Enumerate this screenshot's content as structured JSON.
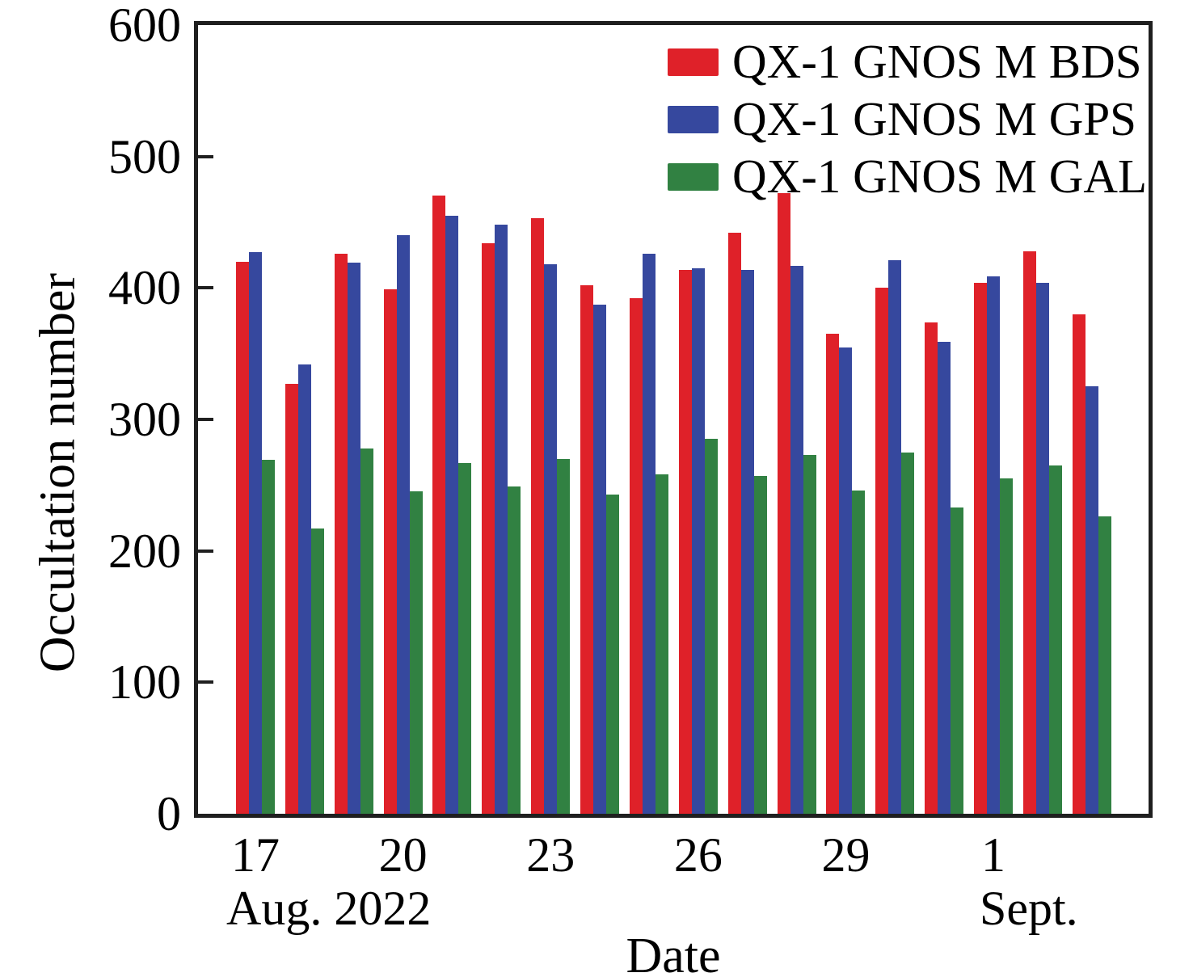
{
  "figure": {
    "ylabel": "Occultation number",
    "xlabel": "Date",
    "period_left": "Aug. 2022",
    "period_right": "Sept."
  },
  "chart_data": {
    "type": "bar",
    "title": "",
    "xlabel": "Date",
    "ylabel": "Occultation number",
    "ylim": [
      0,
      600
    ],
    "yticks": [
      0,
      100,
      200,
      300,
      400,
      500,
      600
    ],
    "grid": false,
    "legend_position": "upper right",
    "categories": [
      "Aug 17",
      "Aug 18",
      "Aug 19",
      "Aug 20",
      "Aug 21",
      "Aug 22",
      "Aug 23",
      "Aug 24",
      "Aug 25",
      "Aug 26",
      "Aug 27",
      "Aug 28",
      "Aug 29",
      "Aug 30",
      "Aug 31",
      "Sept 1",
      "Sept 2",
      "Sept 3"
    ],
    "xticks": [
      {
        "label": "17",
        "index": 0
      },
      {
        "label": "20",
        "index": 3
      },
      {
        "label": "23",
        "index": 6
      },
      {
        "label": "26",
        "index": 9
      },
      {
        "label": "29",
        "index": 12
      },
      {
        "label": "1",
        "index": 15
      }
    ],
    "period_labels": {
      "left": "Aug. 2022",
      "right": "Sept."
    },
    "series": [
      {
        "name": "QX-1 GNOS M BDS",
        "color": "#df2129",
        "values": [
          420,
          327,
          426,
          399,
          470,
          434,
          453,
          402,
          392,
          414,
          442,
          472,
          365,
          400,
          374,
          404,
          428,
          380
        ]
      },
      {
        "name": "QX-1 GNOS M GPS",
        "color": "#36489e",
        "values": [
          427,
          342,
          419,
          440,
          455,
          448,
          418,
          387,
          426,
          415,
          414,
          417,
          355,
          421,
          359,
          409,
          404,
          325
        ]
      },
      {
        "name": "QX-1 GNOS M GAL",
        "color": "#318142",
        "values": [
          269,
          217,
          278,
          245,
          267,
          249,
          270,
          243,
          258,
          285,
          257,
          273,
          246,
          275,
          233,
          255,
          265,
          226
        ]
      }
    ]
  }
}
